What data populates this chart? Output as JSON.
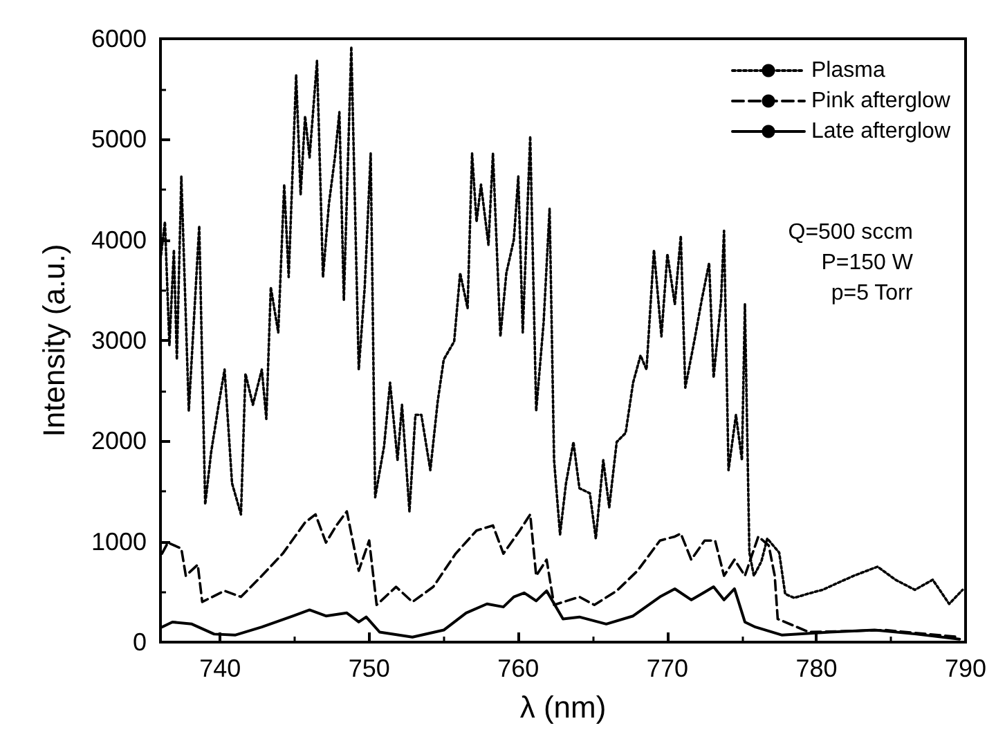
{
  "chart_data": {
    "type": "line",
    "xlabel": "λ (nm)",
    "ylabel": "Intensity (a.u.)",
    "xlim": [
      736,
      790
    ],
    "xticks": [
      740,
      750,
      760,
      770,
      780,
      790
    ],
    "ylim": [
      0,
      6000
    ],
    "yticks": [
      0,
      1000,
      2000,
      3000,
      4000,
      5000,
      6000
    ],
    "grid": false,
    "legend": "top right",
    "marker": "none",
    "annotations": [
      "Q=500 sccm",
      "P=150 W",
      "p=5 Torr"
    ],
    "series": [
      {
        "name": "Plasma",
        "color": "#000000",
        "line_style": "dotted",
        "x": [
          736.0,
          736.3,
          736.6,
          736.9,
          737.1,
          737.4,
          737.9,
          738.6,
          739.0,
          739.4,
          739.9,
          740.3,
          740.8,
          741.4,
          741.7,
          742.2,
          742.8,
          743.1,
          743.4,
          743.9,
          744.3,
          744.6,
          745.1,
          745.4,
          745.7,
          746.0,
          746.5,
          746.9,
          747.3,
          747.7,
          748.0,
          748.3,
          748.8,
          749.3,
          749.7,
          750.1,
          750.4,
          751.0,
          751.4,
          751.9,
          752.2,
          752.7,
          753.1,
          753.5,
          754.1,
          754.6,
          755.0,
          755.7,
          756.1,
          756.6,
          756.9,
          757.2,
          757.5,
          758.0,
          758.3,
          758.8,
          759.2,
          759.7,
          760.0,
          760.3,
          760.8,
          761.2,
          761.7,
          762.1,
          762.4,
          762.8,
          763.2,
          763.7,
          764.1,
          764.8,
          765.2,
          765.7,
          766.1,
          766.6,
          767.2,
          767.7,
          768.2,
          768.6,
          769.1,
          769.6,
          770.0,
          770.5,
          770.9,
          771.2,
          771.8,
          772.3,
          772.8,
          773.1,
          773.6,
          773.8,
          774.1,
          774.6,
          775.0,
          775.2,
          775.5,
          775.8,
          776.3,
          776.7,
          777.5,
          777.9,
          778.5,
          779.4,
          780.4,
          781.3,
          782.5,
          784.1,
          785.3,
          786.6,
          787.8,
          788.9,
          789.8
        ],
        "values": [
          3800,
          4180,
          2950,
          3900,
          2810,
          4630,
          2300,
          4140,
          1370,
          1890,
          2360,
          2710,
          1580,
          1270,
          2670,
          2360,
          2710,
          2220,
          3530,
          3080,
          4550,
          3630,
          5640,
          4450,
          5230,
          4820,
          5780,
          3630,
          4360,
          4820,
          5270,
          3400,
          5920,
          2710,
          3530,
          4860,
          1440,
          1950,
          2580,
          1810,
          2360,
          1300,
          2260,
          2260,
          1710,
          2400,
          2810,
          2990,
          3670,
          3320,
          4860,
          4180,
          4550,
          3950,
          4860,
          3040,
          3670,
          4000,
          4630,
          3080,
          5030,
          2300,
          3180,
          4310,
          1810,
          1070,
          1580,
          1990,
          1530,
          1480,
          1030,
          1810,
          1340,
          1990,
          2080,
          2580,
          2850,
          2710,
          3900,
          3040,
          3860,
          3360,
          4040,
          2530,
          2990,
          3400,
          3770,
          2630,
          3400,
          4090,
          1710,
          2260,
          1810,
          3360,
          890,
          660,
          800,
          1030,
          890,
          480,
          440,
          480,
          520,
          580,
          660,
          750,
          620,
          520,
          620,
          380,
          520
        ]
      },
      {
        "name": "Pink afterglow",
        "color": "#000000",
        "line_style": "dashed",
        "x": [
          736.1,
          736.5,
          737.4,
          737.7,
          738.5,
          738.8,
          740.3,
          741.4,
          742.8,
          744.2,
          745.7,
          746.4,
          747.1,
          747.8,
          748.5,
          749.3,
          750.0,
          750.5,
          751.8,
          752.9,
          754.3,
          755.8,
          757.2,
          758.3,
          759.0,
          760.1,
          760.8,
          761.2,
          761.9,
          762.4,
          764.1,
          765.1,
          766.6,
          768.0,
          769.5,
          770.5,
          770.9,
          771.6,
          772.5,
          773.2,
          773.8,
          774.5,
          775.2,
          776.1,
          776.8,
          777.2,
          777.4,
          779.5,
          784.6,
          789.6
        ],
        "values": [
          880,
          990,
          930,
          660,
          770,
          400,
          510,
          450,
          660,
          880,
          1190,
          1270,
          990,
          1160,
          1300,
          710,
          1010,
          370,
          550,
          400,
          550,
          880,
          1110,
          1160,
          880,
          1110,
          1270,
          660,
          820,
          370,
          450,
          370,
          510,
          710,
          1010,
          1050,
          1080,
          820,
          1010,
          1010,
          660,
          820,
          660,
          1050,
          960,
          660,
          230,
          100,
          120,
          50
        ]
      },
      {
        "name": "Late afterglow",
        "color": "#000000",
        "line_style": "solid",
        "x": [
          736.1,
          736.8,
          738.1,
          739.6,
          741.0,
          742.8,
          744.9,
          746.0,
          747.1,
          748.5,
          749.3,
          749.8,
          750.7,
          752.9,
          755.0,
          756.5,
          757.9,
          759.0,
          759.7,
          760.4,
          761.2,
          761.9,
          763.0,
          764.1,
          765.9,
          767.7,
          769.5,
          770.5,
          771.6,
          772.3,
          773.1,
          773.8,
          774.5,
          775.2,
          775.9,
          777.7,
          780.9,
          783.9,
          786.7,
          789.6
        ],
        "values": [
          150,
          200,
          180,
          80,
          70,
          150,
          260,
          320,
          260,
          290,
          200,
          250,
          100,
          50,
          120,
          290,
          380,
          350,
          450,
          490,
          410,
          510,
          230,
          250,
          180,
          260,
          450,
          530,
          420,
          480,
          550,
          420,
          530,
          200,
          150,
          70,
          100,
          120,
          80,
          30
        ]
      }
    ]
  }
}
